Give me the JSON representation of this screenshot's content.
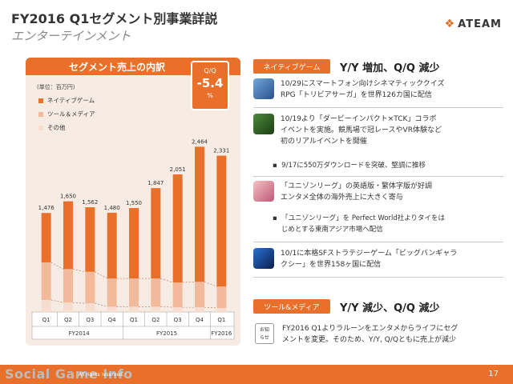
{
  "header": {
    "title": "FY2016 Q1セグメント別事業詳説",
    "subtitle": "エンターテインメント",
    "logo_text": "ATEAM",
    "logo_icon": "ateam-logo-mark"
  },
  "chart_panel": {
    "heading": "セグメント売上の内訳",
    "unit": "(単位：百万円)",
    "qq": {
      "label": "Q/Q",
      "value": "-5.4",
      "unit": "%"
    }
  },
  "chart_data": {
    "type": "bar",
    "categories": [
      "Q1",
      "Q2",
      "Q3",
      "Q4",
      "Q1",
      "Q2",
      "Q3",
      "Q4",
      "Q1"
    ],
    "groups": [
      {
        "label": "FY2014",
        "span": [
          0,
          3
        ]
      },
      {
        "label": "FY2015",
        "span": [
          4,
          7
        ]
      },
      {
        "label": "FY2016",
        "span": [
          8,
          8
        ]
      }
    ],
    "totals": [
      1476,
      1650,
      1562,
      1480,
      1550,
      1847,
      2051,
      2464,
      2331
    ],
    "series": [
      {
        "name": "ネイティブゲーム",
        "color": "#e8702a",
        "values": [
          736,
          1010,
          962,
          980,
          1050,
          1347,
          1611,
          2014,
          1951
        ]
      },
      {
        "name": "ツール＆メディア",
        "color": "#f2b99a",
        "values": [
          560,
          500,
          470,
          420,
          420,
          420,
          370,
          380,
          320
        ]
      },
      {
        "name": "その他",
        "color": "#f7ddd0",
        "values": [
          180,
          140,
          130,
          80,
          80,
          80,
          70,
          70,
          60
        ]
      }
    ],
    "ylim": [
      0,
      2600
    ],
    "legend_position": "top-left"
  },
  "sections": {
    "native": {
      "tag": "ネイティブゲーム",
      "headline": "Y/Y 増加、Q/Q 減少",
      "items": [
        {
          "thumb_icon": "trivia-saga-app-icon",
          "text1": "10/29にスマートフォン向けシネマティッククイズ",
          "text2": "RPG「トリビアサーガ」を世界126カ国に配信"
        },
        {
          "thumb_icon": "derby-impact-app-icon",
          "text1": "10/19より「ダービーインパクト×TCK」コラボ",
          "text2": "イベントを実施。競馬場で冠レースやVR体験など",
          "text3": "初のリアルイベントを開催"
        },
        {
          "thumb_icon": "unison-league-app-icon",
          "text1": "「ユニゾンリーグ」の英語版・繁体字版が好調",
          "text2": "エンタメ全体の海外売上に大きく寄与"
        },
        {
          "thumb_icon": "big-bang-galaxy-app-icon",
          "text1": "10/1に本格SFストラテジーゲーム「ビッグバンギャラ",
          "text2": "クシー」を世界158ヶ国に配信"
        }
      ],
      "bullets": [
        "9/17に550万ダウンロードを突破、堅調に推移",
        "「ユニゾンリーグ」を Perfect World社よりタイをは",
        "じめとする東南アジア市場へ配信"
      ]
    },
    "tools": {
      "tag": "ツール&メディア",
      "headline": "Y/Y 減少、Q/Q 減少",
      "note_label_1": "お知",
      "note_label_2": "らせ",
      "text1": "FY2016 Q1よりラルーンをエンタメからライフにセグ",
      "text2": "メントを変更。そのため、Y/Y, Q/Qともに売上が減少"
    }
  },
  "footer": {
    "watermark": "Social Game Info",
    "copyright": "All rights reserved.",
    "page_number": "17"
  }
}
